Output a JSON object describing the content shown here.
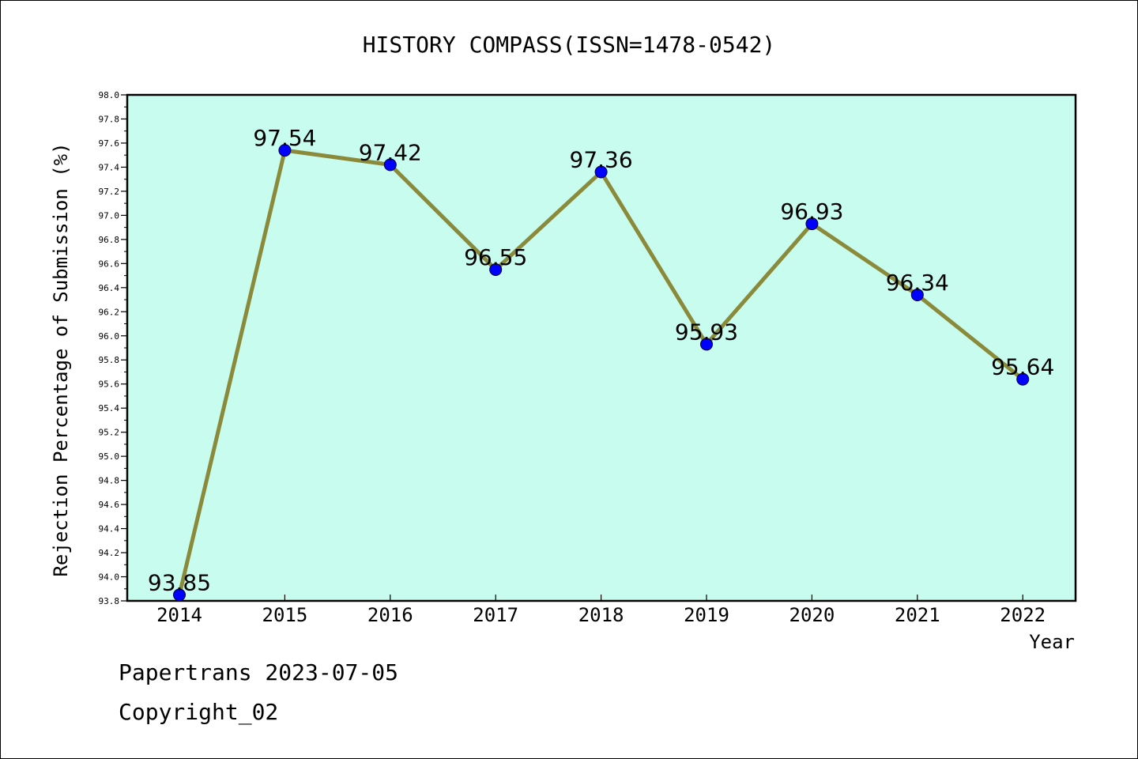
{
  "chart_data": {
    "type": "line",
    "title": "HISTORY COMPASS(ISSN=1478-0542)",
    "xlabel": "Year",
    "ylabel": "Rejection Percentage of Submission (%)",
    "categories": [
      "2014",
      "2015",
      "2016",
      "2017",
      "2018",
      "2019",
      "2020",
      "2021",
      "2022"
    ],
    "values": [
      93.85,
      97.54,
      97.42,
      96.55,
      97.36,
      95.93,
      96.93,
      96.34,
      95.64
    ],
    "value_labels": [
      "93.85",
      "97.54",
      "97.42",
      "96.55",
      "97.36",
      "95.93",
      "96.93",
      "96.34",
      "95.64"
    ],
    "ylim": [
      93.8,
      98.0
    ],
    "yticks": [
      "93.8",
      "94.0",
      "94.2",
      "94.4",
      "94.6",
      "94.8",
      "95.0",
      "95.2",
      "95.4",
      "95.6",
      "95.8",
      "96.0",
      "96.2",
      "96.4",
      "96.6",
      "96.8",
      "97.0",
      "97.2",
      "97.4",
      "97.6",
      "97.8",
      "98.0"
    ],
    "grid": false,
    "colors": {
      "plot_background": "#c8fcee",
      "line": "#8b8a3a",
      "marker": "#0000ff"
    }
  },
  "footer": {
    "line1": "Papertrans 2023-07-05",
    "line2": "Copyright_02"
  }
}
